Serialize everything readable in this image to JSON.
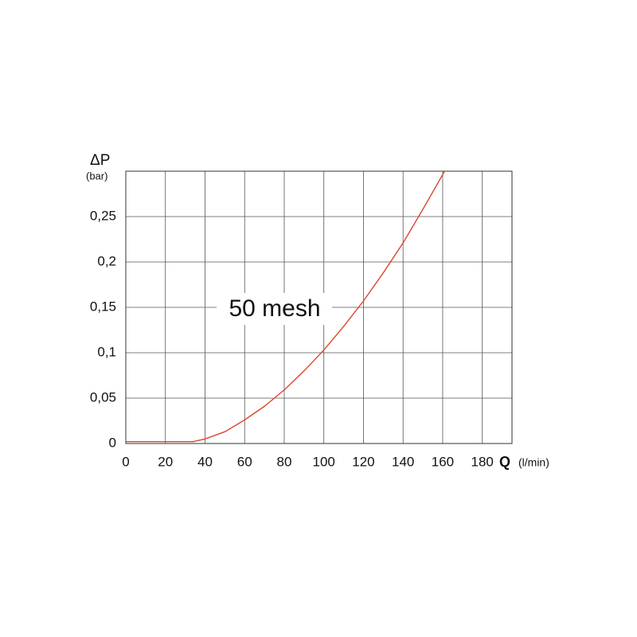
{
  "chart_data": {
    "type": "line",
    "y_label": "ΔP",
    "y_unit": "(bar)",
    "x_label": "Q",
    "x_unit": "(l/min)",
    "annotation": "50 mesh",
    "x": [
      0,
      34,
      40,
      50,
      60,
      70,
      80,
      90,
      100,
      110,
      120,
      130,
      140,
      150,
      161
    ],
    "values": [
      0.002,
      0.002,
      0.005,
      0.013,
      0.026,
      0.041,
      0.059,
      0.08,
      0.103,
      0.129,
      0.157,
      0.188,
      0.221,
      0.258,
      0.3
    ],
    "color": "#d9482b",
    "xlim": [
      0,
      195
    ],
    "xticks": [
      0,
      20,
      40,
      60,
      80,
      100,
      120,
      140,
      160,
      180
    ],
    "ylim": [
      0,
      0.3
    ],
    "yticks": [
      0,
      {
        "value": 0.05,
        "label": "0,05"
      },
      {
        "value": 0.1,
        "label": "0,1"
      },
      {
        "value": 0.15,
        "label": "0,15"
      },
      {
        "value": 0.2,
        "label": "0,2"
      },
      {
        "value": 0.25,
        "label": "0,25"
      }
    ],
    "grid": true
  }
}
